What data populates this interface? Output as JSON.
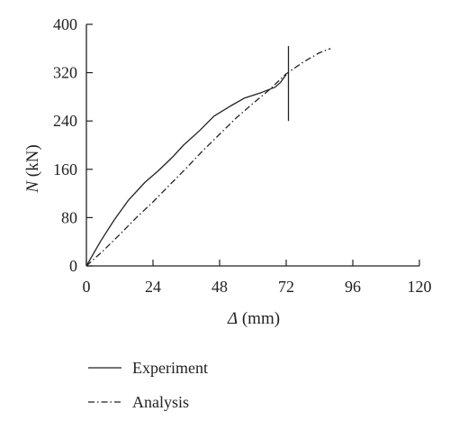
{
  "chart_data": {
    "type": "line",
    "xlabel": "Δ (mm)",
    "ylabel": "N (kN)",
    "xlabel_symbol": "Δ",
    "xlabel_unit": " (mm)",
    "ylabel_symbol": "N",
    "ylabel_unit": " (kN)",
    "xlim": [
      0,
      120
    ],
    "ylim": [
      0,
      400
    ],
    "xticks": [
      0,
      24,
      48,
      72,
      96,
      120
    ],
    "yticks": [
      0,
      80,
      160,
      240,
      320,
      400
    ],
    "xtick_labels": [
      "0",
      "24",
      "48",
      "72",
      "96",
      "120"
    ],
    "ytick_labels": [
      "0",
      "80",
      "160",
      "240",
      "320",
      "400"
    ],
    "grid": false,
    "legend_position": "bottom-left",
    "series": [
      {
        "name": "Experiment",
        "style": "solid",
        "color": "#222222",
        "x": [
          0,
          5,
          10,
          15,
          21,
          26,
          31,
          35,
          41,
          46,
          52,
          57,
          63,
          68,
          70,
          72
        ],
        "y": [
          0,
          40,
          76,
          108,
          138,
          158,
          180,
          200,
          225,
          248,
          265,
          278,
          287,
          296,
          304,
          317
        ]
      },
      {
        "name": "Experiment",
        "style": "solid",
        "color": "#222222",
        "x": [
          72.8,
          72.8
        ],
        "y": [
          240,
          364
        ]
      },
      {
        "name": "Analysis",
        "style": "dashdot",
        "color": "#222222",
        "x": [
          0,
          6,
          12,
          18,
          24,
          30,
          36,
          42,
          48,
          54,
          60,
          66,
          72,
          78,
          84,
          88
        ],
        "y": [
          0,
          25,
          52,
          80,
          106,
          134,
          162,
          191,
          218,
          245,
          269,
          292,
          318,
          337,
          353,
          360
        ]
      }
    ],
    "legend": [
      {
        "label": "Experiment",
        "style": "solid"
      },
      {
        "label": "Analysis",
        "style": "dashdot"
      }
    ]
  }
}
